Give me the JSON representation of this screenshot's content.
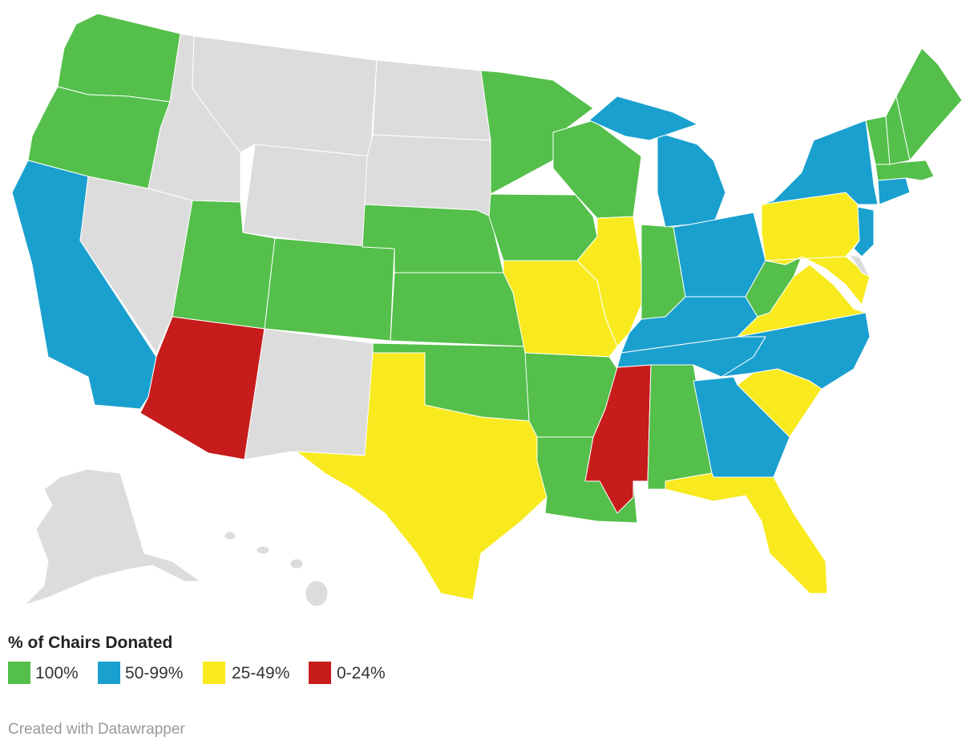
{
  "legend": {
    "title": "% of Chairs Donated",
    "items": [
      {
        "label": "100%",
        "color": "#54bf4a"
      },
      {
        "label": "50-99%",
        "color": "#1aa0cf"
      },
      {
        "label": "25-49%",
        "color": "#f8ea1e"
      },
      {
        "label": "0-24%",
        "color": "#c71c1c"
      }
    ]
  },
  "footer": {
    "credit": "Created with Datawrapper"
  }
}
